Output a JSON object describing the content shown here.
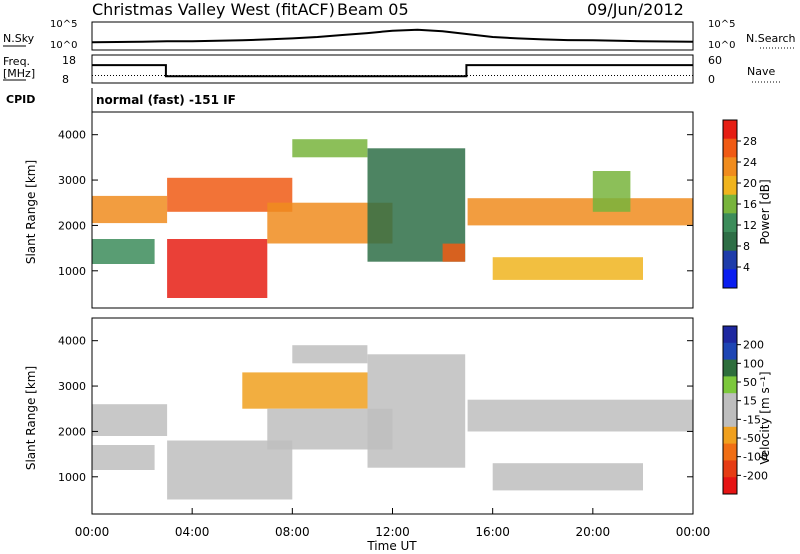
{
  "header": {
    "title": "Christmas Valley West (fitACF)",
    "beam": "Beam 05",
    "date": "09/Jun/2012"
  },
  "sky_panel": {
    "left_label": "N.Sky",
    "left_ticks": [
      "10^5",
      "10^0"
    ],
    "right_label": "N.Search",
    "right_ticks": [
      "10^5",
      "10^0"
    ]
  },
  "freq_panel": {
    "left_label_1": "Freq.",
    "left_label_2": "[MHz]",
    "left_ticks": [
      "18",
      "8"
    ],
    "right_label": "Nave",
    "right_ticks": [
      "60",
      "0"
    ]
  },
  "cpid": {
    "label": "CPID",
    "value": "normal (fast) -151 IF"
  },
  "colors": {
    "power": [
      "#0a1ef0",
      "#1e3caa",
      "#2e6e46",
      "#3c8c5a",
      "#78b43c",
      "#f0b41e",
      "#f08c1e",
      "#f05a14",
      "#e61e14"
    ],
    "velocity": [
      "#1e28a0",
      "#1e46b4",
      "#2e6e3c",
      "#7cc83c",
      "#bebebe",
      "#bebebe",
      "#f0a01e",
      "#f06e14",
      "#e63c14",
      "#e61414"
    ]
  },
  "chart_data": [
    {
      "type": "line",
      "name": "sky-noise",
      "x_unit": "hour UT",
      "series": [
        {
          "x": [
            0,
            1,
            2,
            3,
            4,
            5,
            6,
            7,
            8,
            9,
            10,
            11,
            12,
            13,
            14,
            15,
            16,
            17,
            18,
            19,
            20,
            21,
            22,
            23,
            24
          ],
          "y": [
            0.24,
            0.25,
            0.26,
            0.28,
            0.28,
            0.3,
            0.32,
            0.36,
            0.4,
            0.46,
            0.54,
            0.62,
            0.72,
            0.76,
            0.7,
            0.58,
            0.46,
            0.4,
            0.36,
            0.33,
            0.32,
            0.3,
            0.28,
            0.27,
            0.26
          ]
        }
      ],
      "ylabel": "N.Sky",
      "y2label": "N.Search"
    },
    {
      "type": "line",
      "name": "frequency-nave",
      "series": [
        {
          "label": "Freq",
          "x": [
            0,
            2.95,
            2.95,
            14.95,
            14.95,
            24
          ],
          "y": [
            14.5,
            14.5,
            10.2,
            10.2,
            14.5,
            14.5
          ]
        },
        {
          "label": "Nave",
          "x": [
            0,
            24
          ],
          "y": [
            15,
            15
          ]
        }
      ],
      "ylim": [
        8,
        18
      ],
      "y2lim": [
        0,
        60
      ]
    },
    {
      "type": "heatmap",
      "name": "power",
      "xlabel": "",
      "ylabel": "Slant Range [km]",
      "xlim": [
        0,
        24
      ],
      "ylim": [
        180,
        4500
      ],
      "yticks": [
        1000,
        2000,
        3000,
        4000
      ],
      "colorbar": {
        "label": "Power [dB]",
        "ticks": [
          "28",
          "24",
          "20",
          "16",
          "12",
          "8",
          "4"
        ],
        "range": [
          0,
          30
        ]
      },
      "bands": [
        {
          "t": [
            0,
            3
          ],
          "r0": 2050,
          "r1": 2650,
          "value": 20
        },
        {
          "t": [
            0,
            2.5
          ],
          "r0": 1150,
          "r1": 1700,
          "value": 12
        },
        {
          "t": [
            3,
            8
          ],
          "r0": 2300,
          "r1": 3050,
          "value": 24
        },
        {
          "t": [
            3,
            7
          ],
          "r0": 400,
          "r1": 1700,
          "value": 27
        },
        {
          "t": [
            7,
            12
          ],
          "r0": 1600,
          "r1": 2500,
          "value": 22
        },
        {
          "t": [
            8,
            11
          ],
          "r0": 3500,
          "r1": 3900,
          "value": 16
        },
        {
          "t": [
            11,
            14.9
          ],
          "r0": 1200,
          "r1": 3700,
          "value": 8
        },
        {
          "t": [
            14,
            14.9
          ],
          "r0": 1200,
          "r1": 1600,
          "value": 24
        },
        {
          "t": [
            15,
            24
          ],
          "r0": 2000,
          "r1": 2600,
          "value": 20
        },
        {
          "t": [
            16,
            22
          ],
          "r0": 800,
          "r1": 1300,
          "value": 18
        },
        {
          "t": [
            20,
            21.5
          ],
          "r0": 2300,
          "r1": 3200,
          "value": 16
        }
      ]
    },
    {
      "type": "heatmap",
      "name": "velocity",
      "xlabel": "Time UT",
      "ylabel": "Slant Range [km]",
      "xlim": [
        0,
        24
      ],
      "ylim": [
        180,
        4500
      ],
      "yticks": [
        1000,
        2000,
        3000,
        4000
      ],
      "xticks": [
        "00:00",
        "04:00",
        "08:00",
        "12:00",
        "16:00",
        "20:00",
        "00:00"
      ],
      "colorbar": {
        "label": "Velocity [m s⁻¹]",
        "ticks": [
          "200",
          "100",
          "50",
          "15",
          "-15",
          "-50",
          "-100",
          "-200"
        ],
        "range": [
          -250,
          250
        ]
      },
      "bands": [
        {
          "t": [
            0,
            3
          ],
          "r0": 1900,
          "r1": 2600,
          "value": 0
        },
        {
          "t": [
            0,
            2.5
          ],
          "r0": 1150,
          "r1": 1700,
          "value": 0
        },
        {
          "t": [
            3,
            8
          ],
          "r0": 500,
          "r1": 1800,
          "value": 0
        },
        {
          "t": [
            6,
            11
          ],
          "r0": 2500,
          "r1": 3300,
          "value": -60
        },
        {
          "t": [
            7,
            12
          ],
          "r0": 1600,
          "r1": 2500,
          "value": 0
        },
        {
          "t": [
            8,
            11
          ],
          "r0": 3500,
          "r1": 3900,
          "value": 40
        },
        {
          "t": [
            11,
            14.9
          ],
          "r0": 1200,
          "r1": 3700,
          "value": 20
        },
        {
          "t": [
            15,
            24
          ],
          "r0": 2000,
          "r1": 2700,
          "value": 0
        },
        {
          "t": [
            16,
            22
          ],
          "r0": 700,
          "r1": 1300,
          "value": 0
        }
      ]
    }
  ]
}
